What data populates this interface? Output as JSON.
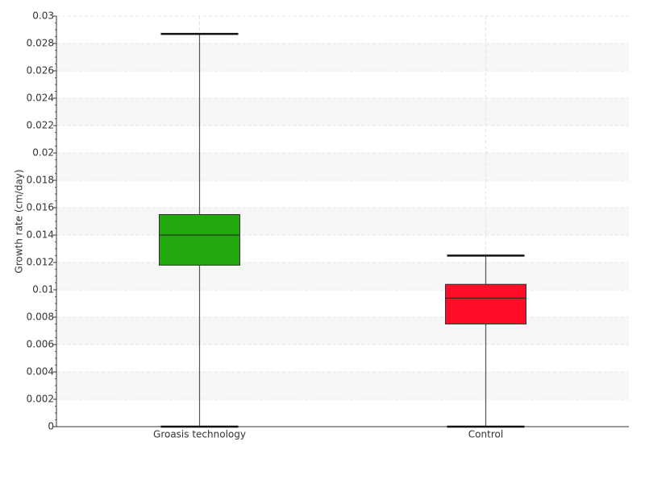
{
  "chart_data": {
    "type": "box",
    "ylabel": "Growth rate (cm/day)",
    "categories": [
      "Groasis technology",
      "Control"
    ],
    "colors": [
      "#22a70f",
      "#ff0d26"
    ],
    "min": [
      0,
      0
    ],
    "q1": [
      0.0118,
      0.0075
    ],
    "median": [
      0.014,
      0.0094
    ],
    "q3": [
      0.0155,
      0.0104
    ],
    "max": [
      0.0287,
      0.0125
    ],
    "ylim": [
      0,
      0.03
    ],
    "yticks": [
      0,
      0.002,
      0.004,
      0.006,
      0.008,
      0.01,
      0.012,
      0.014,
      0.016,
      0.018,
      0.02,
      0.022,
      0.024,
      0.026,
      0.028,
      0.03
    ],
    "grid": true
  }
}
